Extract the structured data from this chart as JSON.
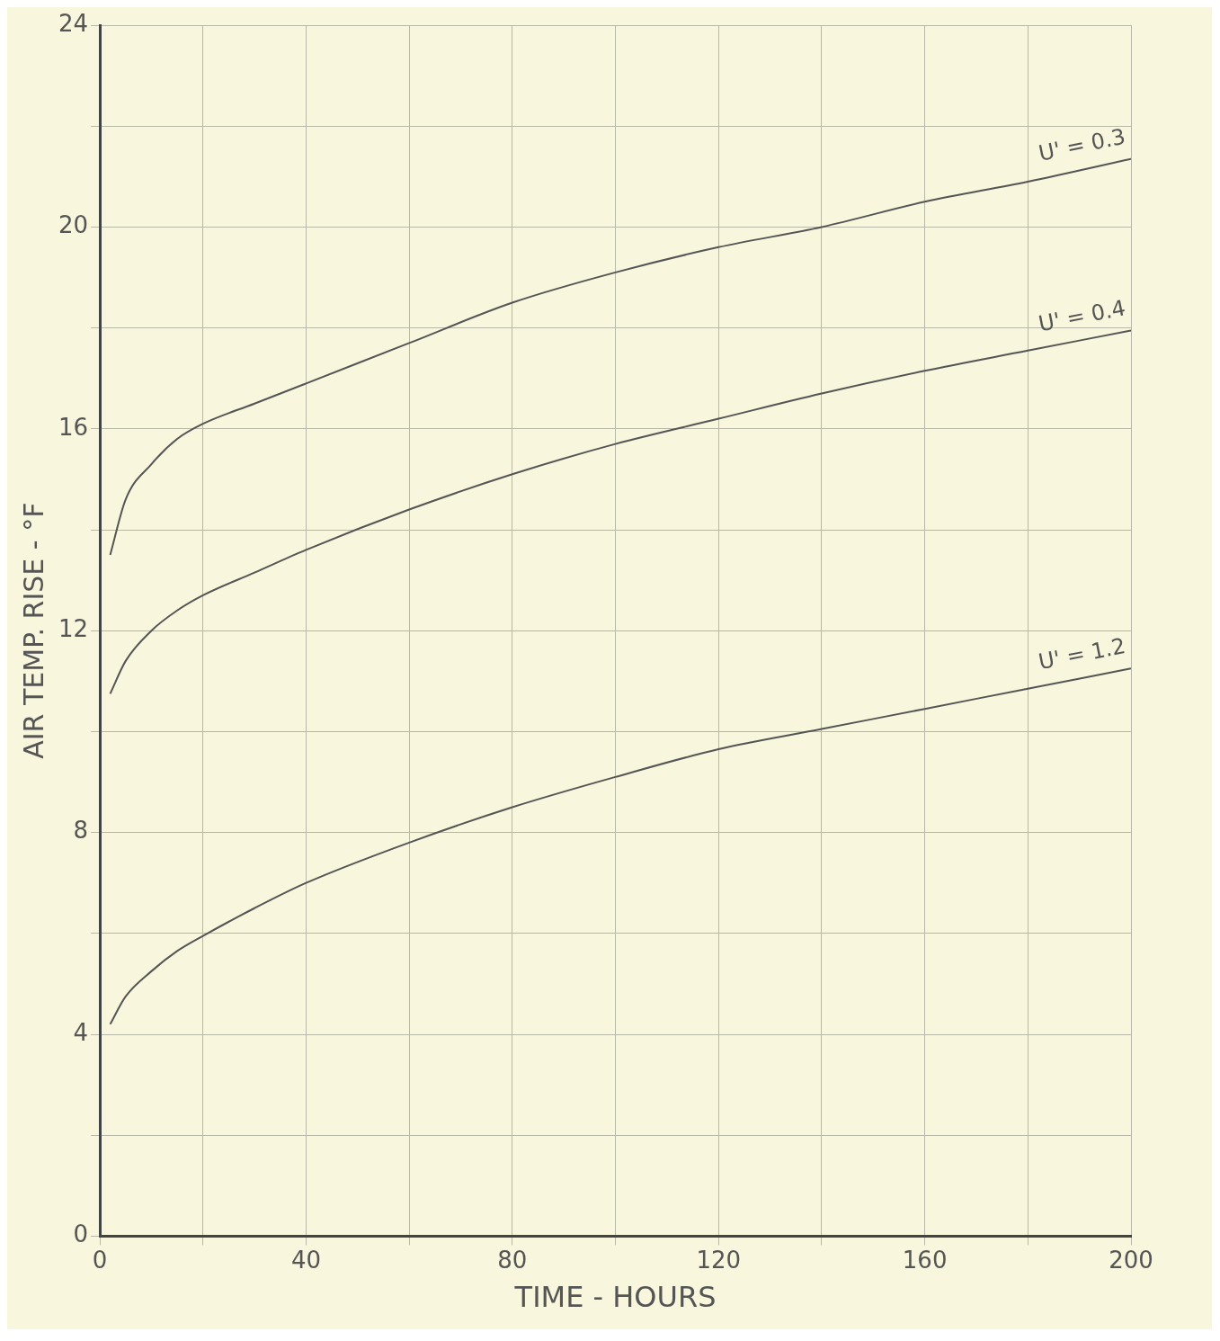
{
  "chart_data": {
    "type": "line",
    "xlabel": "TIME - HOURS",
    "ylabel": "AIR TEMP. RISE - °F",
    "xlim": [
      0,
      200
    ],
    "ylim": [
      0,
      24
    ],
    "xticks": [
      0,
      {
        "value": 20,
        "label": null
      },
      40,
      {
        "value": 60,
        "label": null
      },
      80,
      {
        "value": 100,
        "label": null
      },
      120,
      {
        "value": 140,
        "label": null
      },
      160,
      {
        "value": 180,
        "label": null
      },
      200
    ],
    "yticks": [
      0,
      {
        "value": 2,
        "label": null
      },
      4,
      {
        "value": 6,
        "label": null
      },
      8,
      {
        "value": 10,
        "label": null
      },
      12,
      {
        "value": 14,
        "label": null
      },
      16,
      {
        "value": 18,
        "label": null
      },
      20,
      {
        "value": 22,
        "label": null
      },
      24
    ],
    "grid": true,
    "marker": "none",
    "line_style": "solid",
    "legend": false,
    "x": [
      2,
      5,
      10,
      15,
      20,
      30,
      40,
      60,
      80,
      100,
      120,
      140,
      160,
      180,
      200
    ],
    "series": [
      {
        "name": "U' = 0.3",
        "color": "#555555",
        "values": [
          13.5,
          14.6,
          15.3,
          15.8,
          16.1,
          16.5,
          16.9,
          17.7,
          18.5,
          19.1,
          19.6,
          20.0,
          20.5,
          20.9,
          21.35
        ]
      },
      {
        "name": "U' = 0.4",
        "color": "#555555",
        "values": [
          10.75,
          11.4,
          12.0,
          12.4,
          12.7,
          13.15,
          13.6,
          14.4,
          15.1,
          15.7,
          16.2,
          16.7,
          17.15,
          17.55,
          17.95
        ]
      },
      {
        "name": "U' = 1.2",
        "color": "#555555",
        "values": [
          4.2,
          4.75,
          5.25,
          5.65,
          5.95,
          6.5,
          7.0,
          7.8,
          8.5,
          9.1,
          9.65,
          10.05,
          10.45,
          10.85,
          11.25
        ]
      }
    ]
  }
}
